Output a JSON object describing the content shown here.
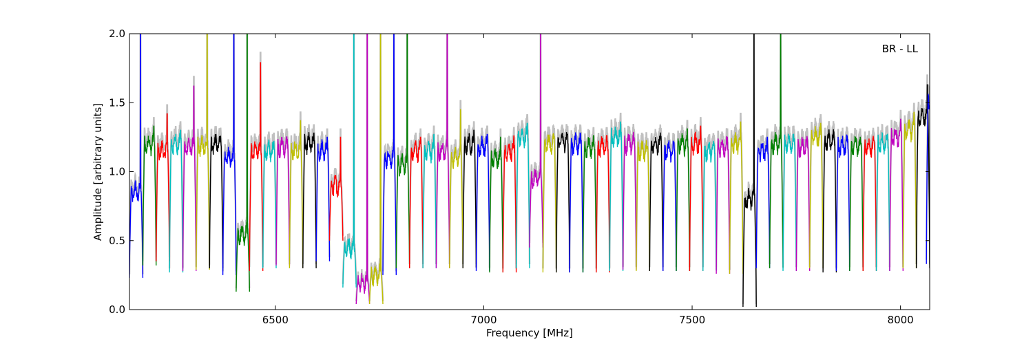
{
  "chart_data": {
    "type": "line",
    "title": "",
    "annotation": "BR - LL",
    "xlabel": "Frequency [MHz]",
    "ylabel": "Amplitude [arbitrary units]",
    "xlim": [
      6150,
      8070
    ],
    "ylim": [
      0.0,
      2.0
    ],
    "xticks": [
      6500,
      7000,
      7500,
      8000
    ],
    "xtick_labels": [
      "6500",
      "7000",
      "7500",
      "8000"
    ],
    "yticks": [
      0.0,
      0.5,
      1.0,
      1.5,
      2.0
    ],
    "ytick_labels": [
      "0.0",
      "0.5",
      "1.0",
      "1.5",
      "2.0"
    ],
    "grid": false,
    "legend": "none",
    "channel_width_mhz": 32,
    "channel_colors": [
      "#0000ff",
      "#008000",
      "#ff0000",
      "#00bfbf",
      "#bf00bf",
      "#bfbf00",
      "#000000"
    ],
    "background_series_color": "#c0c0c0",
    "channels": [
      {
        "start": 6150,
        "level": 0.85,
        "min": 0.23,
        "color": "#0000ff",
        "spike": 2.0
      },
      {
        "start": 6182,
        "level": 1.2,
        "min": 0.32,
        "color": "#008000",
        "spike": 1.33
      },
      {
        "start": 6214,
        "level": 1.15,
        "min": 0.35,
        "color": "#ff0000",
        "spike": 1.42
      },
      {
        "start": 6246,
        "level": 1.2,
        "min": 0.27,
        "color": "#00bfbf",
        "spike": 1.3
      },
      {
        "start": 6278,
        "level": 1.18,
        "min": 0.28,
        "color": "#bf00bf",
        "spike": 1.62
      },
      {
        "start": 6310,
        "level": 1.18,
        "min": 0.29,
        "color": "#bfbf00",
        "spike": 2.0
      },
      {
        "start": 6342,
        "level": 1.2,
        "min": 0.3,
        "color": "#000000",
        "spike": 1.24
      },
      {
        "start": 6374,
        "level": 1.1,
        "min": 0.25,
        "color": "#0000ff",
        "spike": 2.0
      },
      {
        "start": 6406,
        "level": 0.55,
        "min": 0.13,
        "color": "#008000",
        "spike": 2.0
      },
      {
        "start": 6438,
        "level": 1.15,
        "min": 0.28,
        "color": "#ff0000",
        "spike": 1.79
      },
      {
        "start": 6470,
        "level": 1.15,
        "min": 0.3,
        "color": "#00bfbf",
        "spike": 1.22
      },
      {
        "start": 6502,
        "level": 1.18,
        "min": 0.32,
        "color": "#bf00bf",
        "spike": 1.2
      },
      {
        "start": 6534,
        "level": 1.15,
        "min": 0.3,
        "color": "#bfbf00",
        "spike": 1.37
      },
      {
        "start": 6566,
        "level": 1.2,
        "min": 0.3,
        "color": "#000000",
        "spike": 1.28
      },
      {
        "start": 6598,
        "level": 1.15,
        "min": 0.35,
        "color": "#0000ff",
        "spike": 1.25
      },
      {
        "start": 6630,
        "level": 0.9,
        "min": 0.5,
        "color": "#ff0000",
        "spike": 1.25
      },
      {
        "start": 6662,
        "level": 0.45,
        "min": 0.16,
        "color": "#00bfbf",
        "spike": 2.0
      },
      {
        "start": 6694,
        "level": 0.2,
        "min": 0.04,
        "color": "#bf00bf",
        "spike": 2.0
      },
      {
        "start": 6726,
        "level": 0.25,
        "min": 0.04,
        "color": "#bfbf00",
        "spike": 2.0
      },
      {
        "start": 6758,
        "level": 1.1,
        "min": 0.25,
        "color": "#0000ff",
        "spike": 2.0
      },
      {
        "start": 6790,
        "level": 1.05,
        "min": 0.3,
        "color": "#008000",
        "spike": 2.0
      },
      {
        "start": 6822,
        "level": 1.15,
        "min": 0.3,
        "color": "#ff0000",
        "spike": 1.25
      },
      {
        "start": 6854,
        "level": 1.15,
        "min": 0.3,
        "color": "#00bfbf",
        "spike": 1.27
      },
      {
        "start": 6886,
        "level": 1.15,
        "min": 0.3,
        "color": "#bf00bf",
        "spike": 2.0
      },
      {
        "start": 6918,
        "level": 1.1,
        "min": 0.3,
        "color": "#bfbf00",
        "spike": 1.45
      },
      {
        "start": 6950,
        "level": 1.2,
        "min": 0.3,
        "color": "#000000",
        "spike": 1.3
      },
      {
        "start": 6982,
        "level": 1.18,
        "min": 0.28,
        "color": "#0000ff",
        "spike": 1.27
      },
      {
        "start": 7014,
        "level": 1.1,
        "min": 0.27,
        "color": "#008000",
        "spike": 1.25
      },
      {
        "start": 7046,
        "level": 1.15,
        "min": 0.27,
        "color": "#ff0000",
        "spike": 1.26
      },
      {
        "start": 7078,
        "level": 1.25,
        "min": 0.3,
        "color": "#00bfbf",
        "spike": 1.35
      },
      {
        "start": 7110,
        "level": 0.95,
        "min": 0.45,
        "color": "#bf00bf",
        "spike": 2.0
      },
      {
        "start": 7142,
        "level": 1.2,
        "min": 0.27,
        "color": "#bfbf00",
        "spike": 1.24
      },
      {
        "start": 7174,
        "level": 1.22,
        "min": 0.27,
        "color": "#000000",
        "spike": 1.27
      },
      {
        "start": 7206,
        "level": 1.2,
        "min": 0.27,
        "color": "#0000ff",
        "spike": 1.25
      },
      {
        "start": 7238,
        "level": 1.18,
        "min": 0.27,
        "color": "#008000",
        "spike": 1.2
      },
      {
        "start": 7270,
        "level": 1.18,
        "min": 0.27,
        "color": "#ff0000",
        "spike": 1.22
      },
      {
        "start": 7302,
        "level": 1.25,
        "min": 0.28,
        "color": "#00bfbf",
        "spike": 1.36
      },
      {
        "start": 7334,
        "level": 1.2,
        "min": 0.29,
        "color": "#bf00bf",
        "spike": 1.22
      },
      {
        "start": 7366,
        "level": 1.15,
        "min": 0.28,
        "color": "#bfbf00",
        "spike": 1.18
      },
      {
        "start": 7398,
        "level": 1.2,
        "min": 0.28,
        "color": "#000000",
        "spike": 1.21
      },
      {
        "start": 7430,
        "level": 1.15,
        "min": 0.28,
        "color": "#0000ff",
        "spike": 1.21
      },
      {
        "start": 7462,
        "level": 1.2,
        "min": 0.28,
        "color": "#008000",
        "spike": 1.31
      },
      {
        "start": 7494,
        "level": 1.2,
        "min": 0.28,
        "color": "#ff0000",
        "spike": 1.33
      },
      {
        "start": 7526,
        "level": 1.15,
        "min": 0.28,
        "color": "#00bfbf",
        "spike": 1.2
      },
      {
        "start": 7558,
        "level": 1.18,
        "min": 0.26,
        "color": "#bf00bf",
        "spike": 1.25
      },
      {
        "start": 7590,
        "level": 1.2,
        "min": 0.26,
        "color": "#bfbf00",
        "spike": 1.36
      },
      {
        "start": 7622,
        "level": 0.8,
        "min": 0.02,
        "color": "#000000",
        "spike": 2.0
      },
      {
        "start": 7654,
        "level": 1.15,
        "min": 0.3,
        "color": "#0000ff",
        "spike": 1.25
      },
      {
        "start": 7686,
        "level": 1.2,
        "min": 0.3,
        "color": "#008000",
        "spike": 2.0
      },
      {
        "start": 7718,
        "level": 1.2,
        "min": 0.28,
        "color": "#00bfbf",
        "spike": 1.22
      },
      {
        "start": 7750,
        "level": 1.18,
        "min": 0.28,
        "color": "#bf00bf",
        "spike": 1.21
      },
      {
        "start": 7782,
        "level": 1.25,
        "min": 0.3,
        "color": "#bfbf00",
        "spike": 1.35
      },
      {
        "start": 7814,
        "level": 1.22,
        "min": 0.27,
        "color": "#000000",
        "spike": 1.24
      },
      {
        "start": 7846,
        "level": 1.18,
        "min": 0.28,
        "color": "#0000ff",
        "spike": 1.21
      },
      {
        "start": 7878,
        "level": 1.18,
        "min": 0.28,
        "color": "#008000",
        "spike": 1.2
      },
      {
        "start": 7910,
        "level": 1.18,
        "min": 0.28,
        "color": "#ff0000",
        "spike": 1.21
      },
      {
        "start": 7942,
        "level": 1.2,
        "min": 0.28,
        "color": "#00bfbf",
        "spike": 1.27
      },
      {
        "start": 7974,
        "level": 1.25,
        "min": 0.28,
        "color": "#bf00bf",
        "spike": 1.38
      },
      {
        "start": 8006,
        "level": 1.3,
        "min": 0.3,
        "color": "#bfbf00",
        "spike": 1.43
      },
      {
        "start": 8038,
        "level": 1.4,
        "min": 0.3,
        "color": "#000000",
        "spike": 1.63
      },
      {
        "start": 8062,
        "level": 1.5,
        "min": 0.33,
        "color": "#0000ff",
        "spike": 2.0
      }
    ]
  }
}
